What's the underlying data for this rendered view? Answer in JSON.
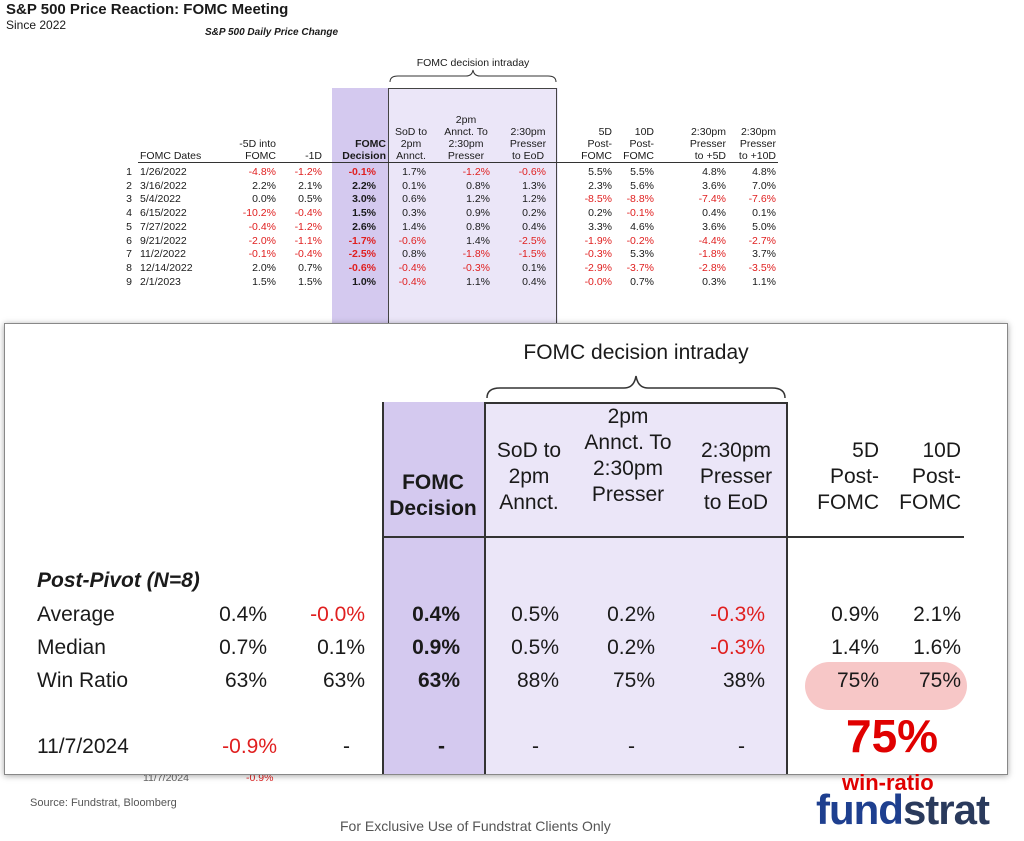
{
  "title": "S&P 500 Price Reaction: FOMC Meeting",
  "subtitle": "Since 2022",
  "table_subtitle": "S&P 500 Daily Price Change",
  "intraday_group_label": "FOMC decision intraday",
  "small_table": {
    "headers": {
      "dates": "FOMC Dates",
      "m5d_l1": "-5D into",
      "m5d_l2": "FOMC",
      "m1d": "-1D",
      "dec_l1": "FOMC",
      "dec_l2": "Decision",
      "sod_l1": "SoD to",
      "sod_l2": "2pm",
      "sod_l3": "Annct.",
      "ann_l1": "2pm",
      "ann_l2": "Annct. To",
      "ann_l3": "2:30pm",
      "ann_l4": "Presser",
      "pre_l1": "2:30pm",
      "pre_l2": "Presser",
      "pre_l3": "to EoD",
      "p5_l1": "5D",
      "p5_l2": "Post-",
      "p5_l3": "FOMC",
      "p10_l1": "10D",
      "p10_l2": "Post-",
      "p10_l3": "FOMC",
      "x5_l1": "2:30pm",
      "x5_l2": "Presser",
      "x5_l3": "to +5D",
      "x10_l1": "2:30pm",
      "x10_l2": "Presser",
      "x10_l3": "to +10D"
    },
    "rows": [
      [
        "1",
        "1/26/2022",
        "-4.8%",
        "-1.2%",
        "-0.1%",
        "1.7%",
        "-1.2%",
        "-0.6%",
        "5.5%",
        "5.5%",
        "4.8%",
        "4.8%"
      ],
      [
        "2",
        "3/16/2022",
        "2.2%",
        "2.1%",
        "2.2%",
        "0.1%",
        "0.8%",
        "1.3%",
        "2.3%",
        "5.6%",
        "3.6%",
        "7.0%"
      ],
      [
        "3",
        "5/4/2022",
        "0.0%",
        "0.5%",
        "3.0%",
        "0.6%",
        "1.2%",
        "1.2%",
        "-8.5%",
        "-8.8%",
        "-7.4%",
        "-7.6%"
      ],
      [
        "4",
        "6/15/2022",
        "-10.2%",
        "-0.4%",
        "1.5%",
        "0.3%",
        "0.9%",
        "0.2%",
        "0.2%",
        "-0.1%",
        "0.4%",
        "0.1%"
      ],
      [
        "5",
        "7/27/2022",
        "-0.4%",
        "-1.2%",
        "2.6%",
        "1.4%",
        "0.8%",
        "0.4%",
        "3.3%",
        "4.6%",
        "3.6%",
        "5.0%"
      ],
      [
        "6",
        "9/21/2022",
        "-2.0%",
        "-1.1%",
        "-1.7%",
        "-0.6%",
        "1.4%",
        "-2.5%",
        "-1.9%",
        "-0.2%",
        "-4.4%",
        "-2.7%"
      ],
      [
        "7",
        "11/2/2022",
        "-0.1%",
        "-0.4%",
        "-2.5%",
        "0.8%",
        "-1.8%",
        "-1.5%",
        "-0.3%",
        "5.3%",
        "-1.8%",
        "3.7%"
      ],
      [
        "8",
        "12/14/2022",
        "2.0%",
        "0.7%",
        "-0.6%",
        "-0.4%",
        "-0.3%",
        "0.1%",
        "-2.9%",
        "-3.7%",
        "-2.8%",
        "-3.5%"
      ],
      [
        "9",
        "2/1/2023",
        "1.5%",
        "1.5%",
        "1.0%",
        "-0.4%",
        "1.1%",
        "0.4%",
        "-0.0%",
        "0.7%",
        "0.3%",
        "1.1%"
      ]
    ]
  },
  "panel": {
    "intraday_label": "FOMC  decision intraday",
    "headers": {
      "dec_l1": "FOMC",
      "dec_l2": "Decision",
      "sod_l1": "SoD to",
      "sod_l2": "2pm",
      "sod_l3": "Annct.",
      "ann_l1": "2pm",
      "ann_l2": "Annct. To",
      "ann_l3": "2:30pm",
      "ann_l4": "Presser",
      "pre_l1": "2:30pm",
      "pre_l2": "Presser",
      "pre_l3": "to EoD",
      "p5_l1": "5D",
      "p5_l2": "Post-",
      "p5_l3": "FOMC",
      "p10_l1": "10D",
      "p10_l2": "Post-",
      "p10_l3": "FOMC"
    },
    "section_label": "Post-Pivot (N=8)",
    "rows": [
      {
        "label": "Average",
        "v": [
          "0.4%",
          "-0.0%",
          "0.4%",
          "0.5%",
          "0.2%",
          "-0.3%",
          "0.9%",
          "2.1%"
        ]
      },
      {
        "label": "Median",
        "v": [
          "0.7%",
          "0.1%",
          "0.9%",
          "0.5%",
          "0.2%",
          "-0.3%",
          "1.4%",
          "1.6%"
        ]
      },
      {
        "label": "Win Ratio",
        "v": [
          "63%",
          "63%",
          "63%",
          "88%",
          "75%",
          "38%",
          "75%",
          "75%"
        ]
      }
    ],
    "last_row": {
      "label": "11/7/2024",
      "v": [
        "-0.9%",
        "-",
        "-",
        "-",
        "-",
        "-"
      ]
    }
  },
  "peek_row": {
    "date": "11/7/2024",
    "value": "-0.9%"
  },
  "callout": {
    "big": "75%",
    "text": "win-ratio"
  },
  "logo": {
    "part1": "fund",
    "part2": "strat"
  },
  "source": "Source: Fundstrat, Bloomberg",
  "footer": "For Exclusive Use of Fundstrat Clients Only",
  "colors": {
    "negative": "#e01f1f",
    "highlight_purple": "#d4c9ef",
    "light_purple": "#ebe6f8",
    "logo_blue": "#1e3f8f",
    "callout_red": "#e00000",
    "win_pill": "#f7c7c7"
  }
}
